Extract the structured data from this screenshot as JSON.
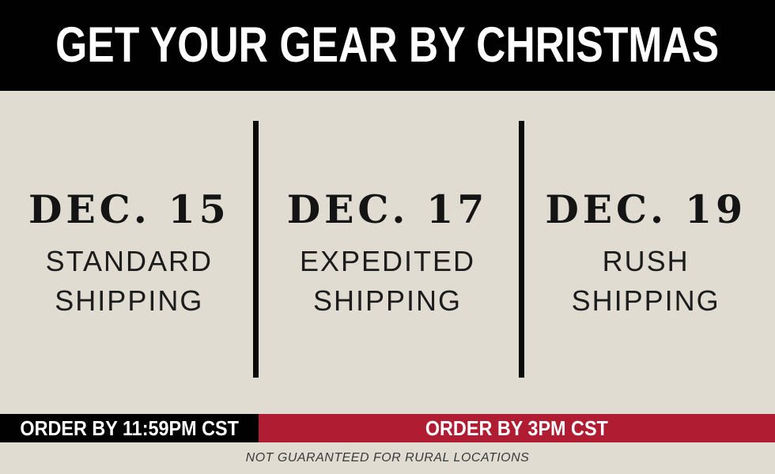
{
  "header": {
    "title": "GET YOUR GEAR BY CHRISTMAS"
  },
  "options": [
    {
      "date": "DEC. 15",
      "method": "STANDARD SHIPPING"
    },
    {
      "date": "DEC. 17",
      "method": "EXPEDITED SHIPPING"
    },
    {
      "date": "DEC. 19",
      "method": "RUSH SHIPPING"
    }
  ],
  "deadlines": {
    "standard": "ORDER BY 11:59PM CST",
    "expedited_rush": "ORDER BY 3PM CST"
  },
  "disclaimer": "NOT GUARANTEED FOR RURAL LOCATIONS",
  "colors": {
    "banner_black": "#010101",
    "background_beige": "#e1dcd2",
    "accent_red": "#b01d32",
    "text_white": "#ffffff",
    "text_black": "#141414"
  }
}
